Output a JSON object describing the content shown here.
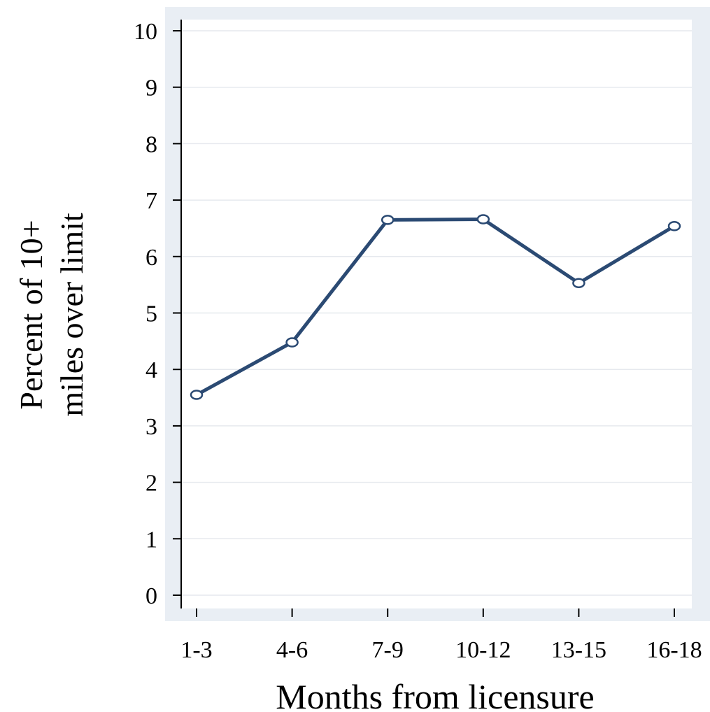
{
  "chart_data": {
    "type": "line",
    "categories": [
      "1-3",
      "4-6",
      "7-9",
      "10-12",
      "13-15",
      "16-18"
    ],
    "series": [
      {
        "values": [
          3.55,
          4.48,
          6.65,
          6.66,
          5.53,
          6.54
        ]
      }
    ],
    "xlabel": "Months from licensure",
    "ylabel_lines": [
      "Percent of 10+",
      "miles over limit"
    ],
    "ylim": [
      0,
      10
    ],
    "yticks": [
      0,
      1,
      2,
      3,
      4,
      5,
      6,
      7,
      8,
      9,
      10
    ],
    "grid": "horizontal",
    "colors": {
      "line": "#2b4a73",
      "outer_frame": "#e9eef4",
      "grid": "#e6e9ee",
      "plot_bg": "#ffffff"
    }
  }
}
